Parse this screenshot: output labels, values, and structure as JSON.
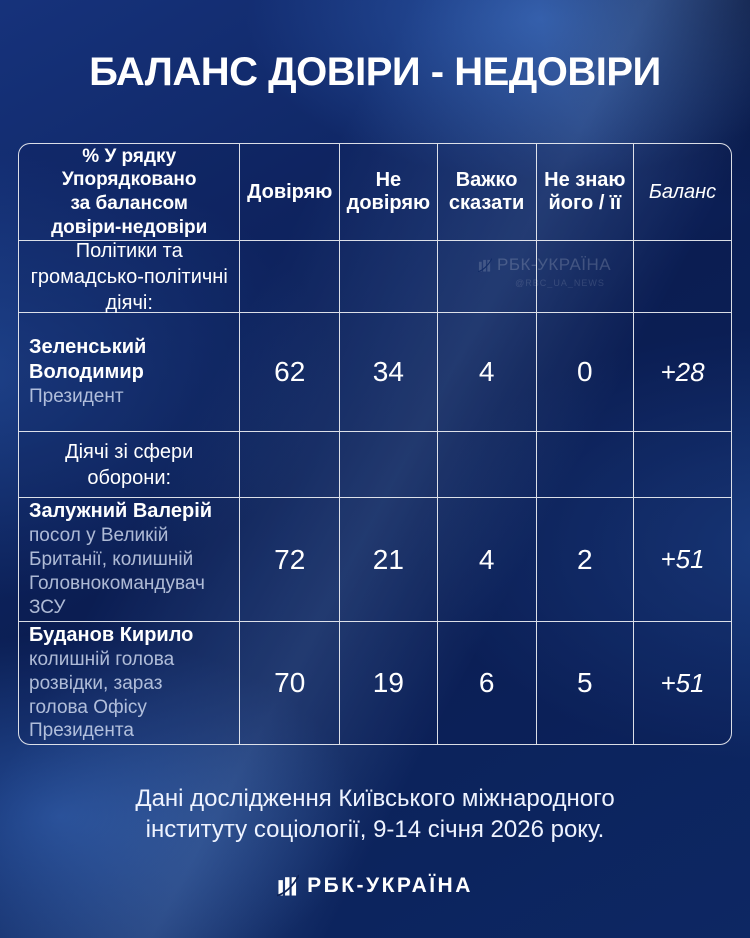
{
  "title": "БАЛАНС ДОВІРИ - НЕДОВІРИ",
  "table": {
    "corner_label": "% У рядку\nУпорядковано\nза балансом\nдовіри-недовіри",
    "column_headers": [
      "Довіряю",
      "Не\nдовіряю",
      "Важко\nсказати",
      "Не знаю\nйого / її",
      "Баланс"
    ],
    "rows": [
      {
        "type": "section",
        "label": "Політики та\nгромадсько-політичні\nдіячі:"
      },
      {
        "type": "person",
        "name": "Зеленський\nВолодимир",
        "role": "Президент",
        "values": [
          62,
          34,
          4,
          0
        ],
        "balance": "+28"
      },
      {
        "type": "section",
        "label": "Діячі зі сфери\nоборони:"
      },
      {
        "type": "person",
        "name": "Залужний Валерій",
        "role": "посол у Великій\nБританії, колишній\nГоловнокомандувач\nЗСУ",
        "values": [
          72,
          21,
          4,
          2
        ],
        "balance": "+51"
      },
      {
        "type": "person",
        "name": "Буданов Кирило",
        "role": "колишній голова\nрозвідки, зараз\nголова Офісу\nПрезидента",
        "values": [
          70,
          19,
          6,
          5
        ],
        "balance": "+51"
      }
    ]
  },
  "watermark": {
    "brand": "РБК-УКРАЇНА",
    "handle": "@RBC_UA_NEWS"
  },
  "source_note": "Дані дослідження Київського міжнародного\nінституту соціології, 9-14 січня 2026 року.",
  "footer": {
    "brand": "РБК-УКРАЇНА",
    "logo_icon": "rbc-bars-logo"
  },
  "colors": {
    "background_deep": "#0b1f55",
    "background_glow": "#3e76d0",
    "grid_line": "rgba(255,255,255,0.85)",
    "text_primary": "#ffffff",
    "text_secondary": "rgba(225,234,252,0.76)"
  },
  "chart_data": {
    "type": "table",
    "title": "БАЛАНС ДОВІРИ - НЕДОВІРИ",
    "row_header": "% У рядку Упорядковано за балансом довіри-недовіри",
    "columns": [
      "Довіряю",
      "Не довіряю",
      "Важко сказати",
      "Не знаю його / її",
      "Баланс"
    ],
    "groups": [
      {
        "group": "Політики та громадсько-політичні діячі:",
        "rows": [
          {
            "name": "Зеленський Володимир",
            "role": "Президент",
            "doviryayu": 62,
            "ne_doviryayu": 34,
            "vazhko_skazaty": 4,
            "ne_znayu": 0,
            "balans": 28
          }
        ]
      },
      {
        "group": "Діячі зі сфери оборони:",
        "rows": [
          {
            "name": "Залужний Валерій",
            "role": "посол у Великій Британії, колишній Головнокомандувач ЗСУ",
            "doviryayu": 72,
            "ne_doviryayu": 21,
            "vazhko_skazaty": 4,
            "ne_znayu": 2,
            "balans": 51
          },
          {
            "name": "Буданов Кирило",
            "role": "колишній голова розвідки, зараз голова Офісу Президента",
            "doviryayu": 70,
            "ne_doviryayu": 19,
            "vazhko_skazaty": 6,
            "ne_znayu": 5,
            "balans": 51
          }
        ]
      }
    ],
    "source": "Дані дослідження Київського міжнародного інституту соціології, 9-14 січня 2026 року."
  }
}
